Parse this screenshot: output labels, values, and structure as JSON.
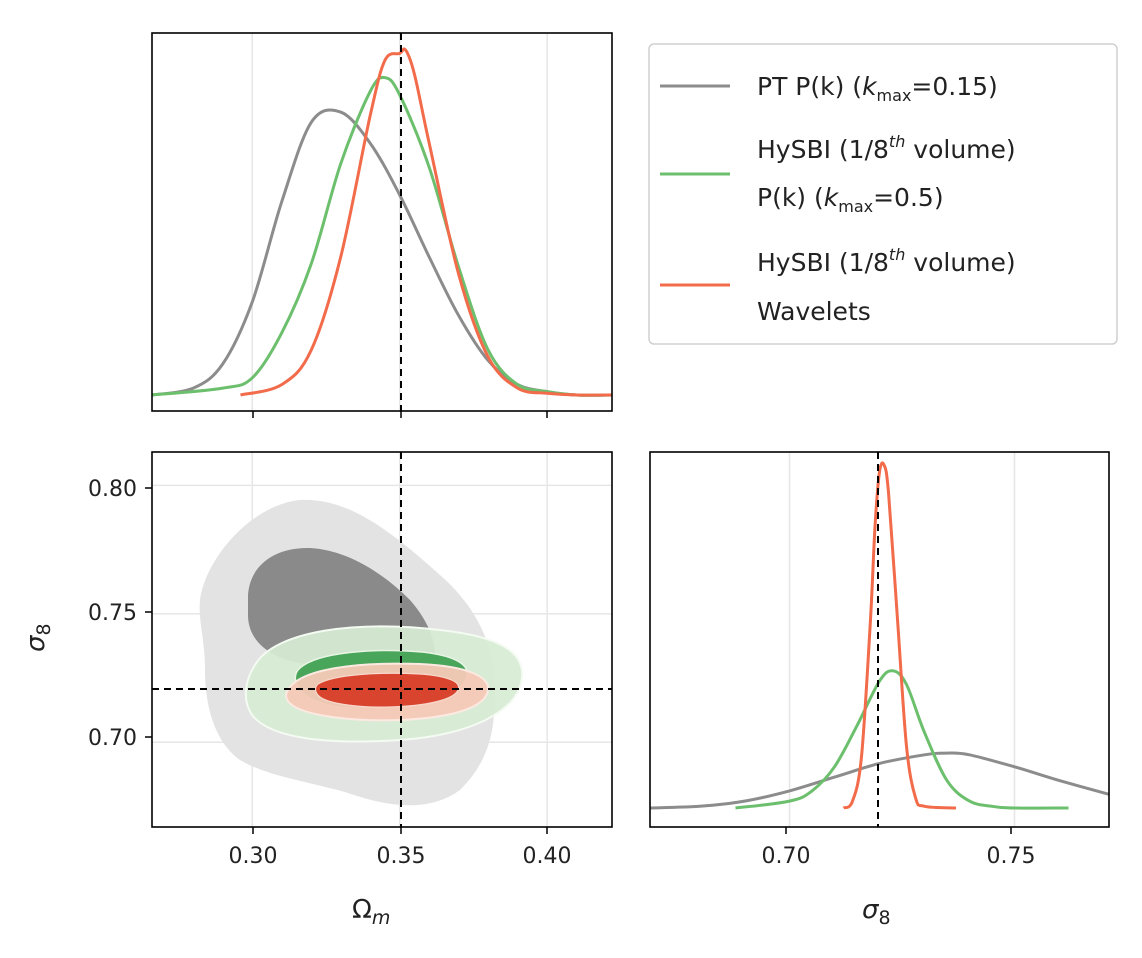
{
  "chart_data": [
    {
      "type": "line",
      "panel": "top-left",
      "xlabel": "",
      "ylabel": "",
      "xlim": [
        0.266,
        0.422
      ],
      "xticks": [
        0.3,
        0.35,
        0.4
      ],
      "grid": true,
      "truth": {
        "x": 0.351
      },
      "series": [
        {
          "name": "PT P(k) (k_max=0.15)",
          "color": "#8c8c8c",
          "x": [
            0.266,
            0.28,
            0.29,
            0.3,
            0.31,
            0.32,
            0.33,
            0.34,
            0.35,
            0.36,
            0.37,
            0.38,
            0.39,
            0.4,
            0.41,
            0.422
          ],
          "y": [
            0.0,
            0.02,
            0.09,
            0.27,
            0.56,
            0.79,
            0.82,
            0.73,
            0.58,
            0.4,
            0.23,
            0.1,
            0.03,
            0.01,
            0.0,
            0.0
          ]
        },
        {
          "name": "HySBI (1/8th volume) P(k) (k_max=0.5)",
          "color": "#6cbf6c",
          "x": [
            0.266,
            0.29,
            0.3,
            0.31,
            0.32,
            0.33,
            0.34,
            0.345,
            0.35,
            0.36,
            0.37,
            0.38,
            0.39,
            0.4,
            0.41,
            0.422
          ],
          "y": [
            0.0,
            0.02,
            0.05,
            0.18,
            0.38,
            0.67,
            0.88,
            0.92,
            0.87,
            0.66,
            0.37,
            0.13,
            0.03,
            0.01,
            0.0,
            0.0
          ]
        },
        {
          "name": "HySBI (1/8th volume) Wavelets",
          "color": "#f26b4a",
          "x": [
            0.296,
            0.31,
            0.32,
            0.33,
            0.34,
            0.345,
            0.35,
            0.352,
            0.355,
            0.36,
            0.37,
            0.38,
            0.39,
            0.4,
            0.41,
            0.422
          ],
          "y": [
            0.0,
            0.03,
            0.13,
            0.4,
            0.81,
            0.97,
            0.99,
            1.0,
            0.93,
            0.73,
            0.35,
            0.11,
            0.02,
            0.005,
            0.0,
            0.0
          ]
        }
      ]
    },
    {
      "type": "contour",
      "panel": "bottom-left",
      "xlabel": "Ωm",
      "ylabel": "σ8",
      "xlim": [
        0.266,
        0.422
      ],
      "ylim": [
        0.667,
        0.813
      ],
      "xticks": [
        0.3,
        0.35,
        0.4
      ],
      "yticks": [
        0.7,
        0.75,
        0.8
      ],
      "grid": true,
      "truth": {
        "x": 0.351,
        "y": 0.719
      },
      "series": [
        {
          "name": "PT P(k) (k_max=0.15)",
          "color": "#8c8c8c",
          "center": [
            0.34,
            0.738
          ],
          "levels": [
            "68%",
            "95%"
          ]
        },
        {
          "name": "HySBI (1/8th volume) P(k) (k_max=0.5)",
          "color": "#3a9a4e",
          "center": [
            0.343,
            0.723
          ],
          "levels": [
            "68%",
            "95%"
          ]
        },
        {
          "name": "HySBI (1/8th volume) Wavelets",
          "color": "#d9442e",
          "center": [
            0.35,
            0.721
          ],
          "levels": [
            "68%",
            "95%"
          ]
        }
      ]
    },
    {
      "type": "line",
      "panel": "bottom-right",
      "xlabel": "σ8",
      "ylabel": "",
      "xlim": [
        0.669,
        0.771
      ],
      "xticks": [
        0.7,
        0.75
      ],
      "grid": true,
      "truth": {
        "x": 0.719
      },
      "series": [
        {
          "name": "PT P(k) (k_max=0.15)",
          "color": "#8c8c8c",
          "x": [
            0.669,
            0.68,
            0.69,
            0.7,
            0.71,
            0.72,
            0.73,
            0.735,
            0.74,
            0.75,
            0.76,
            0.771
          ],
          "y": [
            0.0,
            0.005,
            0.02,
            0.05,
            0.09,
            0.13,
            0.155,
            0.16,
            0.155,
            0.12,
            0.08,
            0.04
          ]
        },
        {
          "name": "HySBI (1/8th volume) P(k) (k_max=0.5)",
          "color": "#6cbf6c",
          "x": [
            0.688,
            0.7,
            0.705,
            0.71,
            0.715,
            0.72,
            0.723,
            0.726,
            0.73,
            0.735,
            0.74,
            0.745,
            0.75,
            0.762
          ],
          "y": [
            0.0,
            0.02,
            0.05,
            0.12,
            0.24,
            0.37,
            0.4,
            0.36,
            0.22,
            0.08,
            0.02,
            0.005,
            0.0,
            0.0
          ]
        },
        {
          "name": "HySBI (1/8th volume) Wavelets",
          "color": "#f26b4a",
          "x": [
            0.712,
            0.714,
            0.716,
            0.718,
            0.719,
            0.72,
            0.721,
            0.722,
            0.724,
            0.726,
            0.728,
            0.73,
            0.737
          ],
          "y": [
            0.0,
            0.02,
            0.15,
            0.55,
            0.82,
            0.98,
            1.0,
            0.92,
            0.55,
            0.18,
            0.03,
            0.005,
            0.0
          ]
        }
      ]
    }
  ],
  "legend": {
    "position": "top-right",
    "entries": [
      {
        "color": "#8c8c8c",
        "lines": [
          "PT P(k) (k_max=0.15)"
        ]
      },
      {
        "color": "#6cbf6c",
        "lines": [
          "HySBI (1/8th volume)",
          "P(k) (k_max=0.5)"
        ]
      },
      {
        "color": "#f26b4a",
        "lines": [
          "HySBI (1/8th volume)",
          "Wavelets"
        ]
      }
    ]
  },
  "labels": {
    "tl_xtick_0": "0.30",
    "tl_xtick_1": "0.35",
    "tl_xtick_2": "0.40",
    "bl_ytick_0": "0.80",
    "bl_ytick_1": "0.75",
    "bl_ytick_2": "0.70",
    "bl_xtick_0": "0.30",
    "bl_xtick_1": "0.35",
    "bl_xtick_2": "0.40",
    "br_xtick_0": "0.70",
    "br_xtick_1": "0.75",
    "xlabel_left_main": "Ω",
    "xlabel_left_sub": "m",
    "ylabel_left_main": "σ",
    "ylabel_left_sub": "8",
    "xlabel_right_main": "σ",
    "xlabel_right_sub": "8",
    "leg1_a": "PT P(k) (",
    "leg1_k": "k",
    "leg1_ksub": "max",
    "leg1_b": "=0.15)",
    "leg2_a": "HySBI (1/8",
    "leg2_sup": "th",
    "leg2_b": " volume)",
    "leg2_c": "P(k) (",
    "leg2_k": "k",
    "leg2_ksub": "max",
    "leg2_d": "=0.5)",
    "leg3_a": "HySBI (1/8",
    "leg3_sup": "th",
    "leg3_b": " volume)",
    "leg3_c": "Wavelets"
  }
}
